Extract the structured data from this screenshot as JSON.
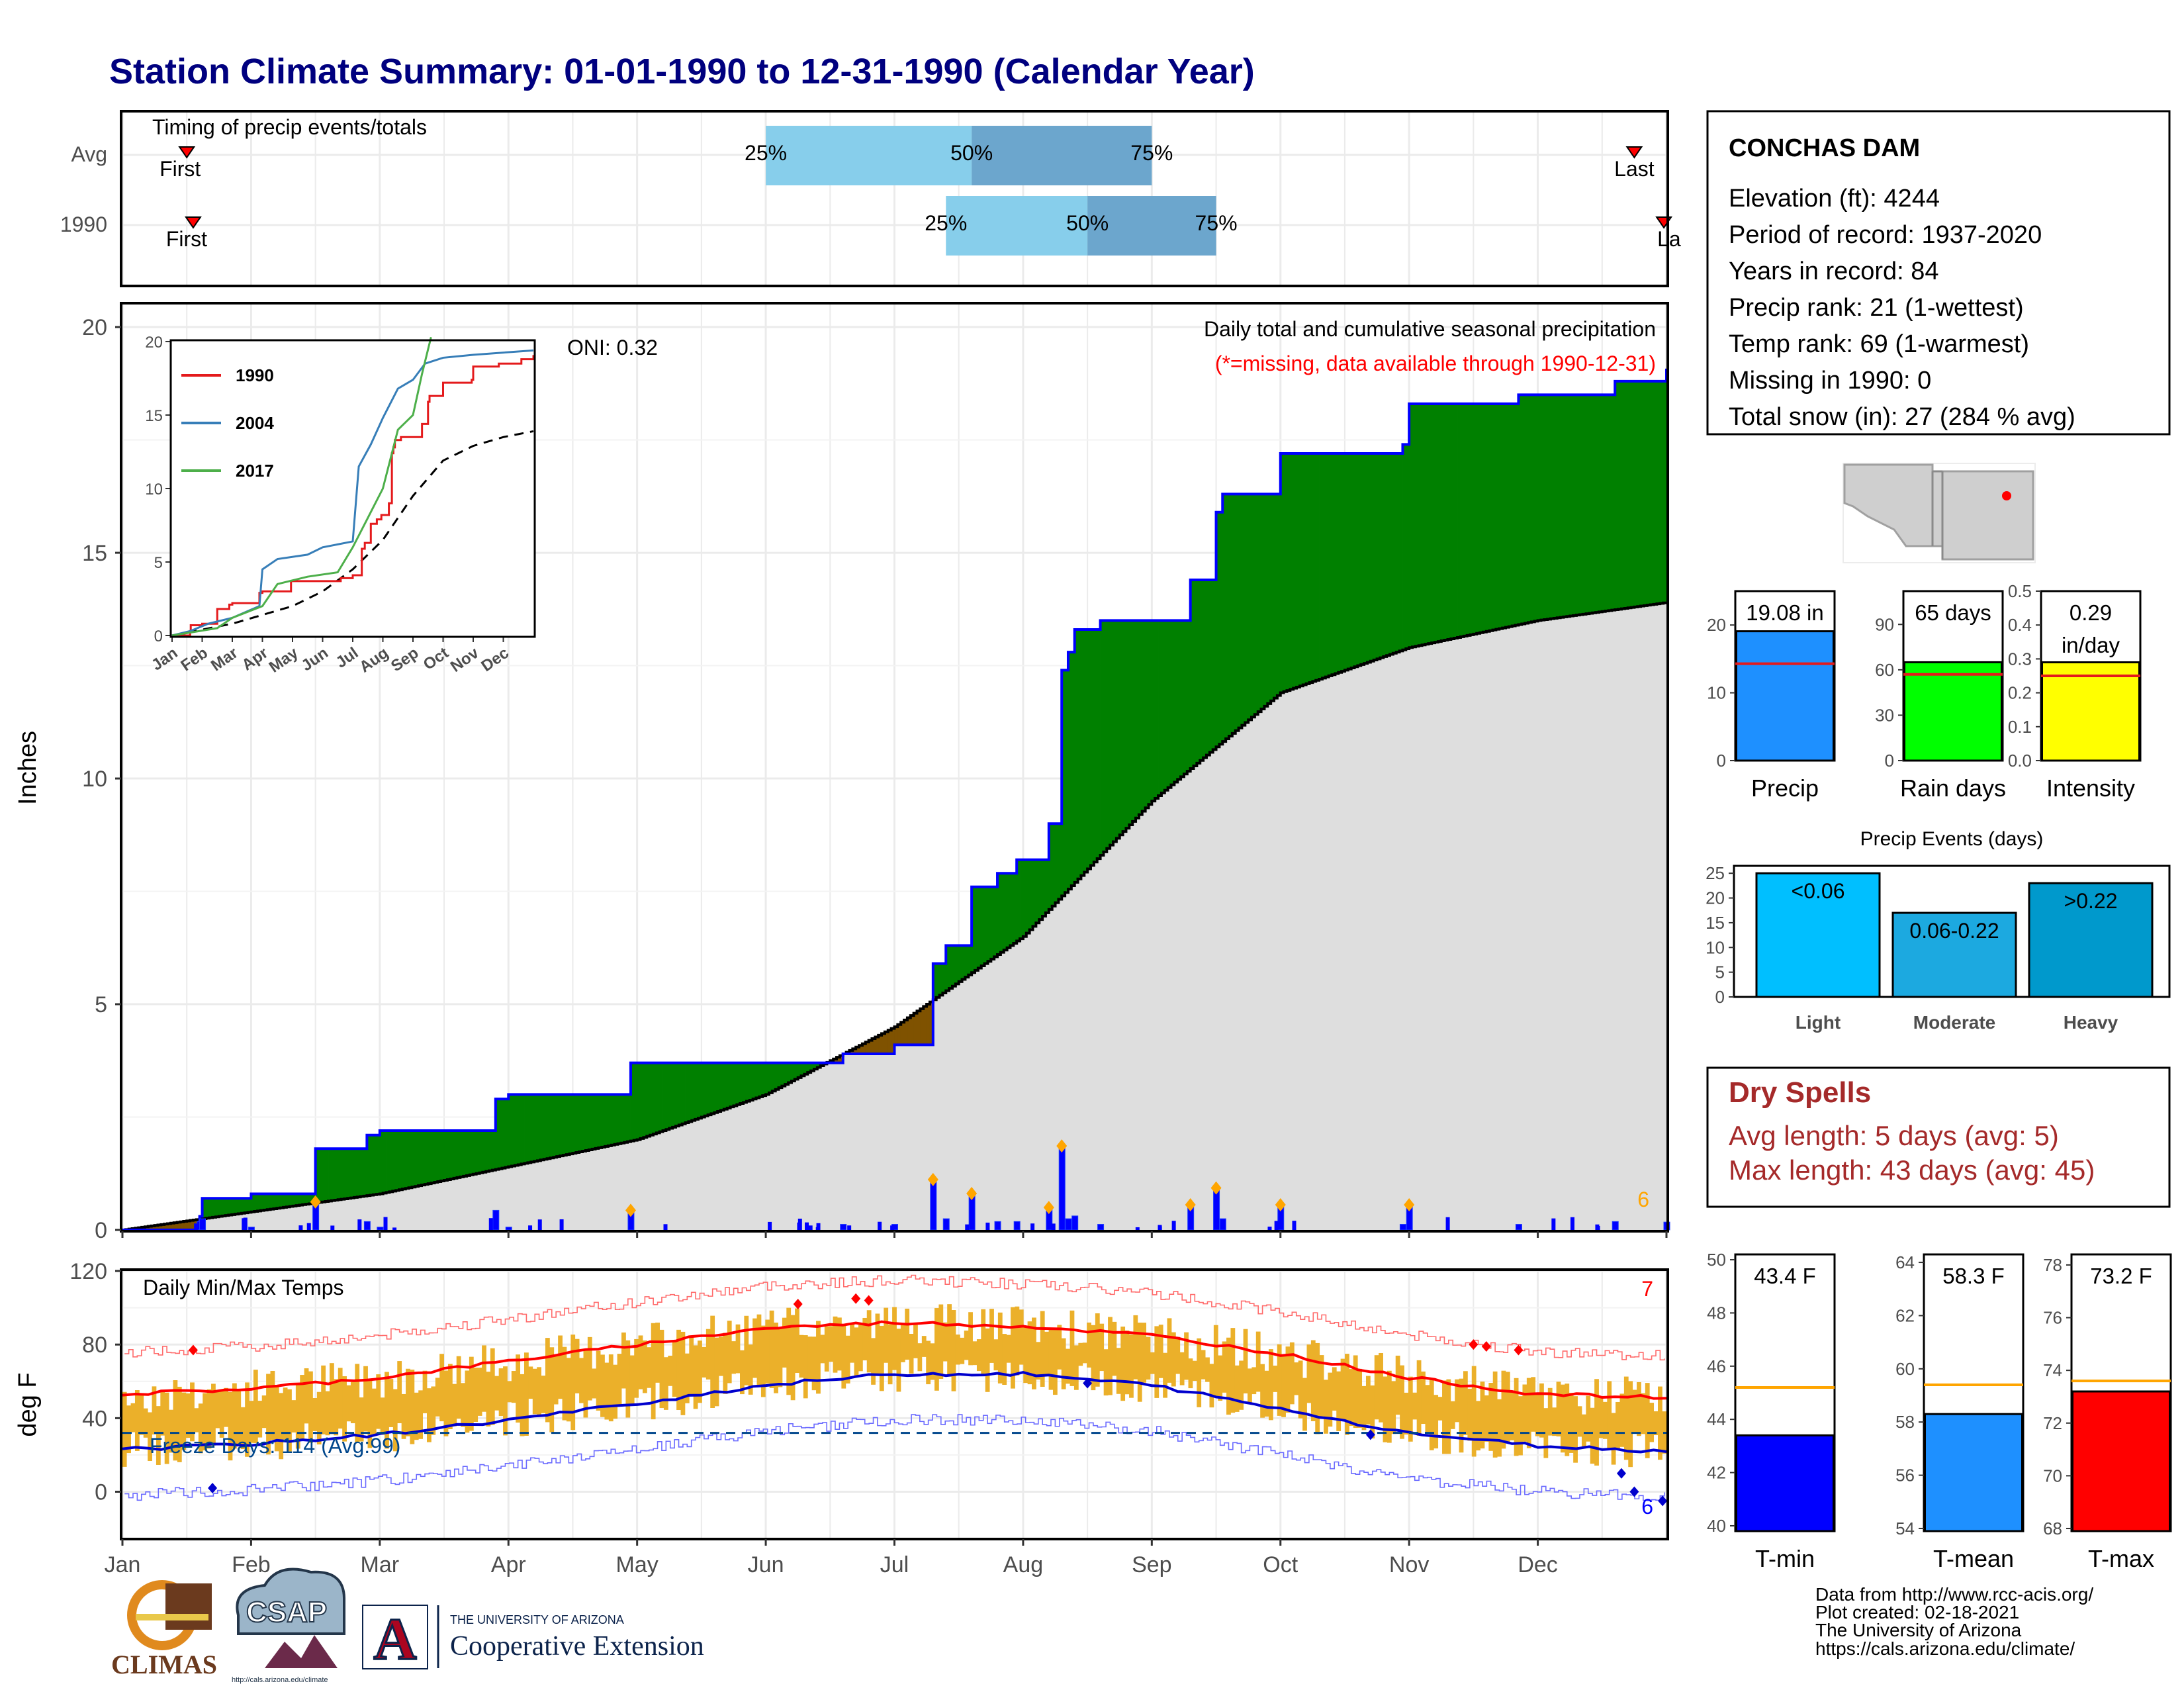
{
  "title": "Station Climate Summary: 01-01-1990 to 12-31-1990 (Calendar Year)",
  "timing": {
    "label": "Timing of precip events/totals",
    "rows": [
      {
        "name": "Avg",
        "first_month": 1.5,
        "last_month": 12.75,
        "p25": 6.0,
        "p50": 7.6,
        "p75": 9.0
      },
      {
        "name": "1990",
        "first_month": 1.55,
        "last_month": 12.98,
        "p25": 7.4,
        "p50": 8.5,
        "p75": 9.5
      }
    ],
    "first_label": "First",
    "last_label": "Last",
    "last_label_1990": "La",
    "pct_labels": [
      "25%",
      "50%",
      "75%"
    ]
  },
  "station": {
    "name": "CONCHAS DAM",
    "lines": [
      "Elevation (ft): 4244",
      "Period of record: 1937-2020",
      "Years in record: 84",
      "Precip rank: 21 (1-wettest)",
      "Temp rank: 69 (1-warmest)",
      "Missing in 1990: 0",
      "Total snow (in): 27 (284 % avg)"
    ]
  },
  "precip_panel": {
    "ylabel": "Inches",
    "yticks": [
      "0",
      "5",
      "10",
      "15",
      "20"
    ],
    "oni": "ONI: 0.32",
    "note1": "Daily total and cumulative seasonal precipitation",
    "note2": "(*=missing, data available through 1990-12-31)",
    "count_label": "6",
    "colors": {
      "above": "#008000",
      "below": "#7f5200",
      "avg_fill": "#dedede",
      "line": "#0000ff"
    }
  },
  "inset": {
    "yticks": [
      "0",
      "5",
      "10",
      "15",
      "20"
    ],
    "months": [
      "Jan",
      "Feb",
      "Mar",
      "Apr",
      "May",
      "Jun",
      "Jul",
      "Aug",
      "Sep",
      "Oct",
      "Nov",
      "Dec"
    ],
    "legend": [
      {
        "name": "1990",
        "color": "#e41a1c"
      },
      {
        "name": "2004",
        "color": "#377eb8"
      },
      {
        "name": "2017",
        "color": "#4daf4a"
      }
    ]
  },
  "temp_panel": {
    "ylabel": "deg F",
    "yticks": [
      "0",
      "40",
      "80",
      "120"
    ],
    "title": "Daily Min/Max Temps",
    "freeze": "Freeze Days: 114 (Avg:99)",
    "count_max": "7",
    "count_min": "6"
  },
  "months": [
    "Jan",
    "Feb",
    "Mar",
    "Apr",
    "May",
    "Jun",
    "Jul",
    "Aug",
    "Sep",
    "Oct",
    "Nov",
    "Dec"
  ],
  "chart_data": [
    {
      "type": "area",
      "title": "Daily total and cumulative seasonal precipitation",
      "ylabel": "Inches",
      "ylim": [
        0,
        20.5
      ],
      "x_unit": "month",
      "series": [
        {
          "name": "1990",
          "x": [
            1,
            1.6,
            1.62,
            2.0,
            2.45,
            2.5,
            2.9,
            3.0,
            3.9,
            4.0,
            4.95,
            5.0,
            5.95,
            6.2,
            6.6,
            6.7,
            7.0,
            7.3,
            7.4,
            7.6,
            7.8,
            7.95,
            8.2,
            8.3,
            8.35,
            8.4,
            8.6,
            9.0,
            9.3,
            9.5,
            9.55,
            9.9,
            10.0,
            10.95,
            11.0,
            11.85,
            12.0,
            12.5,
            12.6,
            13.0
          ],
          "values": [
            0,
            0.3,
            0.7,
            0.8,
            0.8,
            1.8,
            2.1,
            2.2,
            2.9,
            3.0,
            3.7,
            3.7,
            3.7,
            3.7,
            3.9,
            3.9,
            4.1,
            5.9,
            6.3,
            7.6,
            7.9,
            8.2,
            9.0,
            12.4,
            12.8,
            13.3,
            13.5,
            13.5,
            14.4,
            15.9,
            16.3,
            16.3,
            17.2,
            17.4,
            18.3,
            18.5,
            18.5,
            18.5,
            18.8,
            19.08
          ]
        },
        {
          "name": "Average",
          "x": [
            1,
            2,
            3,
            4,
            5,
            6,
            7,
            8,
            9,
            10,
            11,
            12,
            13
          ],
          "values": [
            0,
            0.4,
            0.8,
            1.4,
            2.0,
            3.0,
            4.5,
            6.5,
            9.5,
            11.9,
            12.9,
            13.5,
            13.9
          ]
        }
      ]
    },
    {
      "type": "line",
      "title": "Daily Min/Max Temps",
      "ylabel": "deg F",
      "ylim": [
        -25,
        120
      ],
      "x_unit": "month",
      "series": [
        {
          "name": "Avg max",
          "x": [
            1,
            2,
            3,
            4,
            5,
            6,
            7,
            8,
            9,
            10,
            11,
            12,
            13
          ],
          "values": [
            53,
            56,
            62,
            71,
            80,
            89,
            92,
            90,
            85,
            75,
            62,
            53,
            51
          ]
        },
        {
          "name": "Avg min",
          "x": [
            1,
            2,
            3,
            4,
            5,
            6,
            7,
            8,
            9,
            10,
            11,
            12,
            13
          ],
          "values": [
            23,
            26,
            31,
            39,
            48,
            58,
            64,
            64,
            58,
            45,
            32,
            25,
            22
          ]
        },
        {
          "name": "Freeze line",
          "x": [
            1,
            13
          ],
          "values": [
            32,
            32
          ]
        }
      ]
    },
    {
      "type": "bar",
      "title": "Precip",
      "categories": [
        "Precip"
      ],
      "values": [
        19.08
      ],
      "label": "19.08 in",
      "average": 14.3,
      "ylim": [
        0,
        25
      ],
      "yticks": [
        "0",
        "10",
        "20"
      ],
      "color": "#1e90ff"
    },
    {
      "type": "bar",
      "title": "Rain days",
      "categories": [
        "Rain days"
      ],
      "values": [
        65
      ],
      "label": "65 days",
      "average": 57,
      "ylim": [
        0,
        112
      ],
      "yticks": [
        "0",
        "30",
        "60",
        "90"
      ],
      "color": "#00ff00"
    },
    {
      "type": "bar",
      "title": "Intensity",
      "categories": [
        "Intensity"
      ],
      "values": [
        0.29
      ],
      "label": "0.29",
      "label2": "in/day",
      "average": 0.25,
      "ylim": [
        0,
        0.5
      ],
      "yticks": [
        "0.0",
        "0.1",
        "0.2",
        "0.3",
        "0.4",
        "0.5"
      ],
      "color": "#ffff00"
    },
    {
      "type": "bar",
      "title": "Precip Events (days)",
      "categories": [
        "Light",
        "Moderate",
        "Heavy"
      ],
      "labels": [
        "<0.06",
        "0.06-0.22",
        ">0.22"
      ],
      "values": [
        25,
        17,
        23
      ],
      "ylim": [
        0,
        26.5
      ],
      "yticks": [
        "0",
        "5",
        "10",
        "15",
        "20",
        "25"
      ],
      "colors": [
        "#00bfff",
        "#1ca9e0",
        "#0099cc"
      ]
    },
    {
      "type": "bar",
      "title": "T-min",
      "categories": [
        "T-min"
      ],
      "values": [
        43.4
      ],
      "label": "43.4 F",
      "average": 45.2,
      "ylim": [
        39.8,
        50.2
      ],
      "yticks": [
        "40",
        "42",
        "44",
        "46",
        "48",
        "50"
      ],
      "color": "#0000ff"
    },
    {
      "type": "bar",
      "title": "T-mean",
      "categories": [
        "T-mean"
      ],
      "values": [
        58.3
      ],
      "label": "58.3 F",
      "average": 59.4,
      "ylim": [
        53.9,
        64.3
      ],
      "yticks": [
        "54",
        "56",
        "58",
        "60",
        "62",
        "64"
      ],
      "color": "#1e90ff"
    },
    {
      "type": "bar",
      "title": "T-max",
      "categories": [
        "T-max"
      ],
      "values": [
        73.2
      ],
      "label": "73.2 F",
      "average": 73.6,
      "ylim": [
        67.9,
        78.4
      ],
      "yticks": [
        "68",
        "70",
        "72",
        "74",
        "76",
        "78"
      ],
      "color": "#ff0000"
    }
  ],
  "dry_spells": {
    "title": "Dry Spells",
    "line1": "Avg length: 5 days (avg: 5)",
    "line2": "Max length: 43 days (avg: 45)"
  },
  "footer": {
    "lines": [
      "Data from http://www.rcc-acis.org/",
      "Plot created: 02-18-2021",
      "The University of Arizona",
      "https://cals.arizona.edu/climate/"
    ],
    "logos": {
      "climas": "CLIMAS",
      "csap": "CSAP",
      "csap_url": "http://cals.arizona.edu/climate",
      "ua_small": "THE UNIVERSITY OF ARIZONA",
      "ua_big": "Cooperative Extension",
      "ua_mark": "A"
    }
  }
}
